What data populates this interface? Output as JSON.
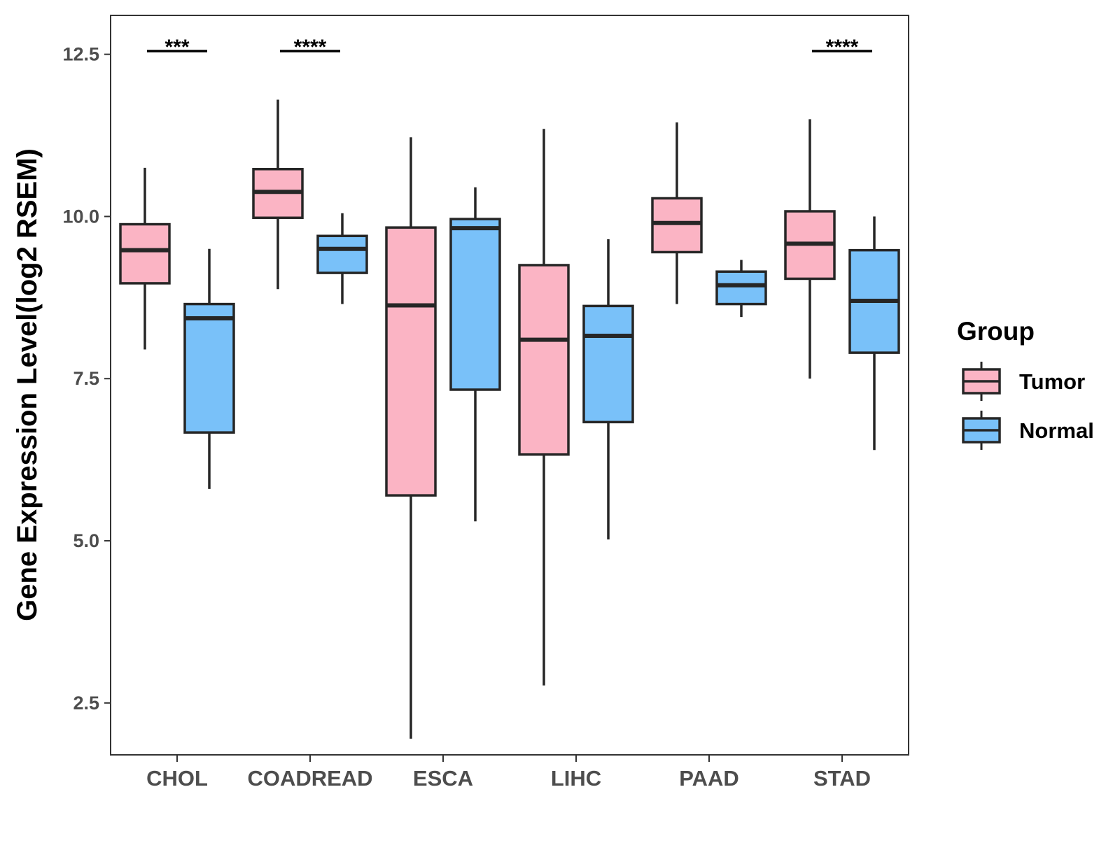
{
  "chart_data": {
    "type": "boxplot",
    "ylabel": "Gene Expression Level(log2 RSEM)",
    "xlabel": "",
    "ylim": [
      1.7,
      13.1
    ],
    "yticks": [
      2.5,
      5.0,
      7.5,
      10.0,
      12.5
    ],
    "ytick_labels": [
      "2.5",
      "5.0",
      "7.5",
      "10.0",
      "12.5"
    ],
    "categories": [
      "CHOL",
      "COADREAD",
      "ESCA",
      "LIHC",
      "PAAD",
      "STAD"
    ],
    "legend": {
      "title": "Group",
      "position": "right",
      "entries": [
        {
          "name": "Tumor",
          "color": "#FBB4C4"
        },
        {
          "name": "Normal",
          "color": "#79C1F9"
        }
      ]
    },
    "series": [
      {
        "name": "Tumor",
        "color": "#FBB4C4",
        "boxes": [
          {
            "category": "CHOL",
            "whisker_low": 7.95,
            "q1": 8.97,
            "median": 9.48,
            "q3": 9.88,
            "whisker_high": 10.75
          },
          {
            "category": "COADREAD",
            "whisker_low": 8.88,
            "q1": 9.98,
            "median": 10.38,
            "q3": 10.73,
            "whisker_high": 11.8
          },
          {
            "category": "ESCA",
            "whisker_low": 1.95,
            "q1": 5.7,
            "median": 8.63,
            "q3": 9.83,
            "whisker_high": 11.22
          },
          {
            "category": "LIHC",
            "whisker_low": 2.77,
            "q1": 6.33,
            "median": 8.1,
            "q3": 9.25,
            "whisker_high": 11.35
          },
          {
            "category": "PAAD",
            "whisker_low": 8.65,
            "q1": 9.45,
            "median": 9.9,
            "q3": 10.28,
            "whisker_high": 11.45
          },
          {
            "category": "STAD",
            "whisker_low": 7.5,
            "q1": 9.04,
            "median": 9.58,
            "q3": 10.08,
            "whisker_high": 11.5
          }
        ]
      },
      {
        "name": "Normal",
        "color": "#79C1F9",
        "boxes": [
          {
            "category": "CHOL",
            "whisker_low": 5.8,
            "q1": 6.67,
            "median": 8.43,
            "q3": 8.65,
            "whisker_high": 9.5
          },
          {
            "category": "COADREAD",
            "whisker_low": 8.65,
            "q1": 9.13,
            "median": 9.5,
            "q3": 9.7,
            "whisker_high": 10.05
          },
          {
            "category": "ESCA",
            "whisker_low": 5.3,
            "q1": 7.33,
            "median": 9.82,
            "q3": 9.96,
            "whisker_high": 10.45
          },
          {
            "category": "LIHC",
            "whisker_low": 5.02,
            "q1": 6.83,
            "median": 8.16,
            "q3": 8.62,
            "whisker_high": 9.65
          },
          {
            "category": "PAAD",
            "whisker_low": 8.45,
            "q1": 8.65,
            "median": 8.94,
            "q3": 9.15,
            "whisker_high": 9.33
          },
          {
            "category": "STAD",
            "whisker_low": 6.4,
            "q1": 7.9,
            "median": 8.7,
            "q3": 9.48,
            "whisker_high": 10.0
          }
        ]
      }
    ],
    "annotations": [
      {
        "category": "CHOL",
        "y": 12.55,
        "label": "***"
      },
      {
        "category": "COADREAD",
        "y": 12.55,
        "label": "****"
      },
      {
        "category": "STAD",
        "y": 12.55,
        "label": "****"
      }
    ]
  }
}
